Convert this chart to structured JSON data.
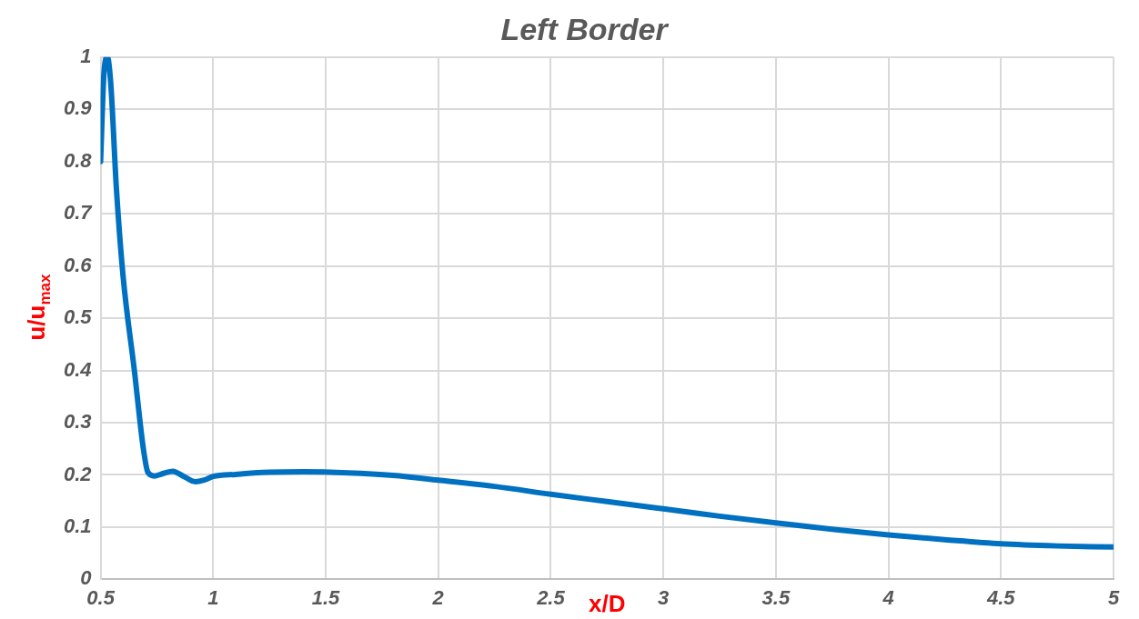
{
  "chart_data": {
    "type": "line",
    "title": "Left Border",
    "xlabel": "x/D",
    "ylabel": "u/u$_{max}$",
    "x": [
      0.5,
      0.515,
      0.53,
      0.545,
      0.57,
      0.6,
      0.65,
      0.69,
      0.71,
      0.74,
      0.78,
      0.82,
      0.87,
      0.92,
      0.96,
      1.0,
      1.1,
      1.25,
      1.4,
      1.6,
      1.8,
      2.0,
      2.25,
      2.5,
      2.75,
      3.0,
      3.25,
      3.5,
      3.75,
      4.0,
      4.25,
      4.5,
      4.75,
      5.0
    ],
    "series": [
      {
        "color": "#0070c0",
        "values": [
          0.8,
          0.97,
          1.0,
          0.95,
          0.75,
          0.58,
          0.4,
          0.25,
          0.205,
          0.198,
          0.203,
          0.207,
          0.197,
          0.187,
          0.19,
          0.197,
          0.201,
          0.205,
          0.206,
          0.204,
          0.199,
          0.19,
          0.178,
          0.163,
          0.149,
          0.135,
          0.121,
          0.108,
          0.096,
          0.085,
          0.076,
          0.068,
          0.064,
          0.062
        ]
      }
    ],
    "xlim": [
      0.5,
      5
    ],
    "xticks": [
      0.5,
      1,
      1.5,
      2,
      2.5,
      3,
      3.5,
      4,
      4.5,
      5
    ],
    "ylim": [
      0,
      1
    ],
    "yticks": [
      0,
      0.1,
      0.2,
      0.3,
      0.4,
      0.5,
      0.6,
      0.7,
      0.8,
      0.9,
      1
    ],
    "grid": true,
    "legend": false,
    "marker": "none",
    "line_style": "solid"
  }
}
